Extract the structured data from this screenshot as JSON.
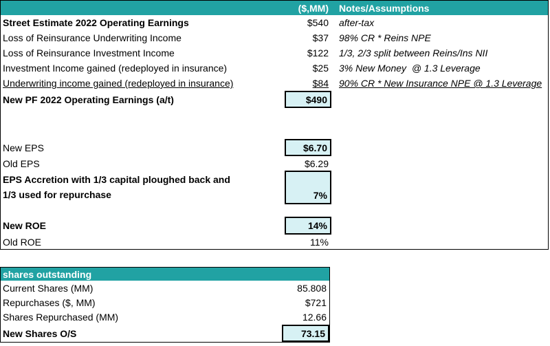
{
  "colors": {
    "teal": "#21A2A3",
    "highlight": "#D7F1F4"
  },
  "main_table": {
    "header": {
      "units_col": "($,MM)",
      "notes_col": "Notes/Assumptions"
    },
    "rows": [
      {
        "label": "Street Estimate 2022 Operating Earnings",
        "value": "$540",
        "note": "after-tax"
      },
      {
        "label": "Loss of Reinsurance Underwriting Income",
        "value": "$37",
        "note": "98% CR * Reins NPE"
      },
      {
        "label": "Loss of Reinsurance Investment Income",
        "value": "$122",
        "note": "1/3, 2/3 split between Reins/Ins NII"
      },
      {
        "label": "Investment Income gained (redeployed in insurance)",
        "value": "$25",
        "note": "3% New Money  @ 1.3 Leverage"
      },
      {
        "label": "Underwriting income gained (redeployed in insurance)",
        "value": "$84",
        "note": "90% CR * New Insurance NPE @ 1.3 Leverage"
      },
      {
        "label": "New PF 2022 Operating Earnings (a/t)",
        "value": "$490"
      },
      {
        "label": "New EPS",
        "value": "$6.70"
      },
      {
        "label": "Old EPS",
        "value": "$6.29"
      },
      {
        "label_line1": "EPS Accretion with 1/3 capital ploughed back and",
        "label_line2": "1/3 used for repurchase",
        "value": "7%"
      },
      {
        "label": "New ROE",
        "value": "14%"
      },
      {
        "label": "Old ROE",
        "value": "11%"
      }
    ]
  },
  "shares_table": {
    "header": "shares outstanding",
    "rows": [
      {
        "label": "Current Shares (MM)",
        "value": "85.808"
      },
      {
        "label": "Repurchases ($, MM)",
        "value": "$721"
      },
      {
        "label": "Shares Repurchased (MM)",
        "value": "12.66"
      },
      {
        "label": "New Shares O/S",
        "value": "73.15"
      }
    ]
  }
}
